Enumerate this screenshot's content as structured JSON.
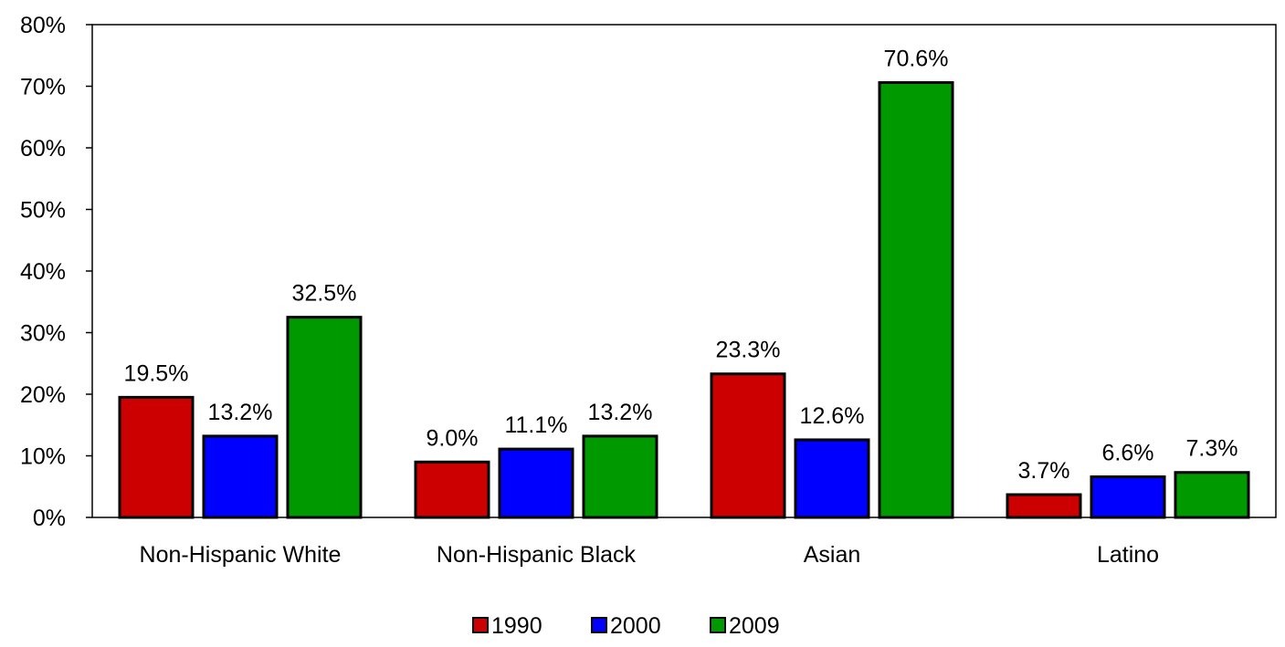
{
  "chart_data": {
    "type": "bar",
    "categories": [
      "Non-Hispanic White",
      "Non-Hispanic Black",
      "Asian",
      "Latino"
    ],
    "series": [
      {
        "name": "1990",
        "color": "#cc0000",
        "values": [
          19.5,
          9.0,
          23.3,
          3.7
        ],
        "labels": [
          "19.5%",
          "9.0%",
          "23.3%",
          "3.7%"
        ]
      },
      {
        "name": "2000",
        "color": "#0000ff",
        "values": [
          13.2,
          11.1,
          12.6,
          6.6
        ],
        "labels": [
          "13.2%",
          "11.1%",
          "12.6%",
          "6.6%"
        ]
      },
      {
        "name": "2009",
        "color": "#009900",
        "values": [
          32.5,
          13.2,
          70.6,
          7.3
        ],
        "labels": [
          "32.5%",
          "13.2%",
          "70.6%",
          "7.3%"
        ]
      }
    ],
    "ylim": [
      0,
      80
    ],
    "yticks": [
      "0%",
      "10%",
      "20%",
      "30%",
      "40%",
      "50%",
      "60%",
      "70%",
      "80%"
    ],
    "grid": false,
    "legend": "bottom-center"
  }
}
